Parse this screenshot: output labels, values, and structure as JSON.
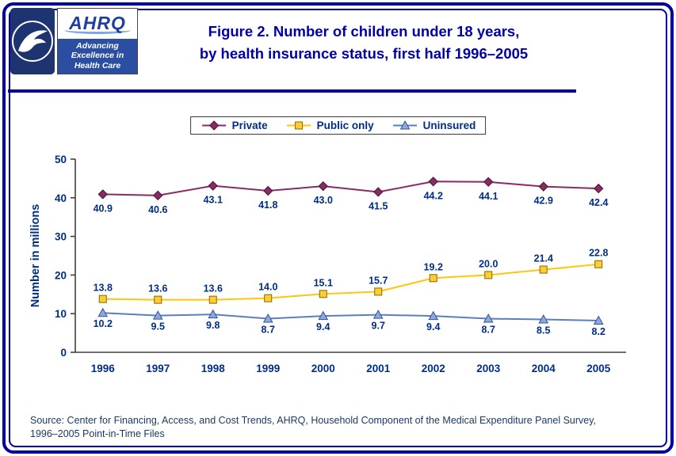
{
  "header": {
    "logo": {
      "acronym": "AHRQ",
      "tagline": [
        "Advancing",
        "Excellence in",
        "Health Care"
      ]
    },
    "title_line1": "Figure 2. Number of children under 18 years,",
    "title_line2": "by health insurance status, first half 1996–2005"
  },
  "chart_data": {
    "type": "line",
    "categories": [
      "1996",
      "1997",
      "1998",
      "1999",
      "2000",
      "2001",
      "2002",
      "2003",
      "2004",
      "2005"
    ],
    "series": [
      {
        "name": "Private",
        "marker": "diamond",
        "line_color": "#8A2A62",
        "marker_fill": "#8A2A62",
        "marker_stroke": "#471533",
        "label_side": "below",
        "label_dy": 22,
        "values": [
          40.9,
          40.6,
          43.1,
          41.8,
          43.0,
          41.5,
          44.2,
          44.1,
          42.9,
          42.4
        ]
      },
      {
        "name": "Public only",
        "marker": "square",
        "line_color": "#FFC60B",
        "marker_fill": "#FFCC33",
        "marker_stroke": "#7F6A00",
        "label_side": "above",
        "label_dy": -10,
        "values": [
          13.8,
          13.6,
          13.6,
          14.0,
          15.1,
          15.7,
          19.2,
          20.0,
          21.4,
          22.8
        ]
      },
      {
        "name": "Uninsured",
        "marker": "triangle",
        "line_color": "#5B7EC2",
        "marker_fill": "#8FA8DC",
        "marker_stroke": "#2F5496",
        "label_side": "below",
        "label_dy": 18,
        "values": [
          10.2,
          9.5,
          9.8,
          8.7,
          9.4,
          9.7,
          9.4,
          8.7,
          8.5,
          8.2
        ]
      }
    ],
    "ylabel": "Number in millions",
    "ylim": [
      0,
      50
    ],
    "yticks": [
      0,
      10,
      20,
      30,
      40,
      50
    ],
    "legend_position": "top",
    "grid": false,
    "axis_line_color": "#404040"
  },
  "source": {
    "line1": "Source: Center for Financing, Access, and Cost Trends, AHRQ, Household Component of the Medical Expenditure Panel Survey,",
    "line2": "1996–2005 Point-in-Time Files"
  },
  "colors": {
    "frame": "#0000A0",
    "title": "#0000A6",
    "axis_text": "#002D86",
    "source_text": "#1A3A63"
  }
}
